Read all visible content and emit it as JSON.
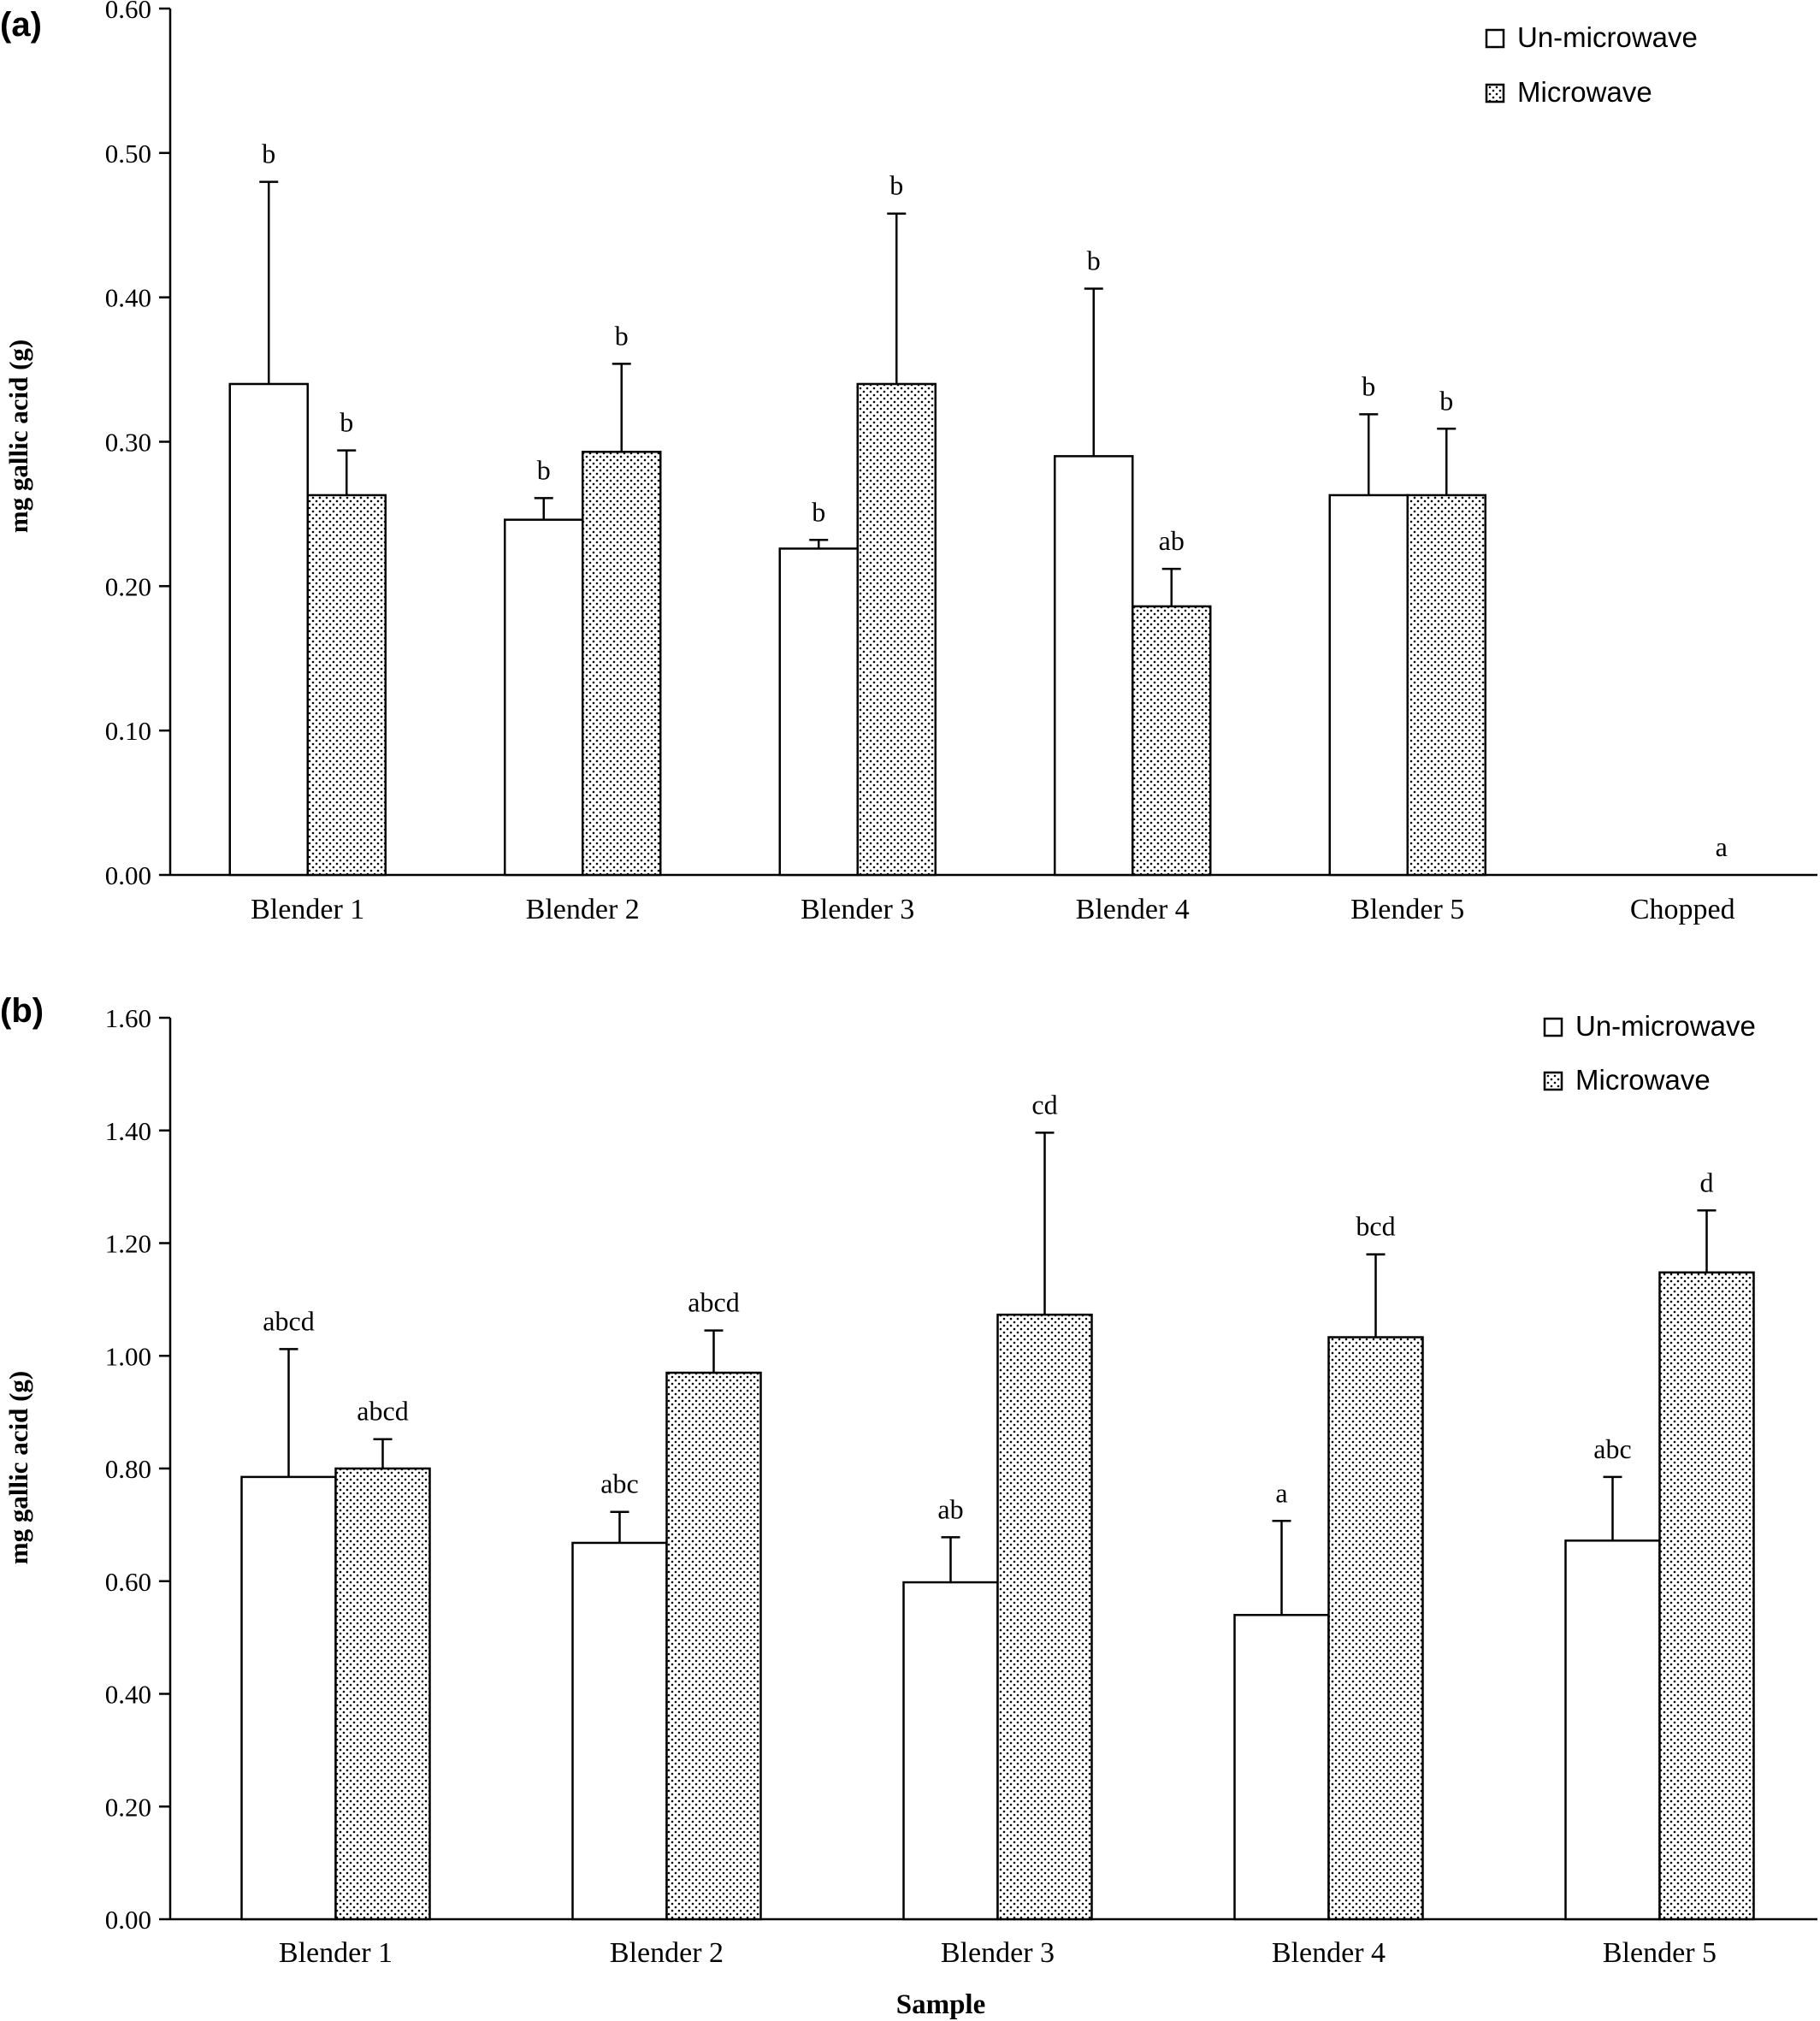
{
  "chart_data": [
    {
      "panel_label": "(a)",
      "type": "bar",
      "ylabel": "mg gallic acid (g)",
      "xlabel": "",
      "ylim": [
        0,
        0.6
      ],
      "yticks": [
        "0.00",
        "0.10",
        "0.20",
        "0.30",
        "0.40",
        "0.50",
        "0.60"
      ],
      "grid": false,
      "legend_position": "top-right",
      "categories": [
        "Blender 1",
        "Blender 2",
        "Blender 3",
        "Blender 4",
        "Blender 5",
        "Chopped"
      ],
      "series": [
        {
          "name": "Un-microwave",
          "pattern": "white",
          "values": [
            0.34,
            0.246,
            0.226,
            0.29,
            0.263,
            0
          ],
          "error": [
            0.14,
            0.015,
            0.006,
            0.116,
            0.056,
            0
          ],
          "labels": [
            "b",
            "b",
            "b",
            "b",
            "b",
            ""
          ]
        },
        {
          "name": "Microwave",
          "pattern": "dotted",
          "values": [
            0.263,
            0.293,
            0.34,
            0.186,
            0.263,
            0
          ],
          "error": [
            0.031,
            0.061,
            0.118,
            0.026,
            0.046,
            0
          ],
          "labels": [
            "b",
            "b",
            "b",
            "ab",
            "b",
            "a"
          ]
        }
      ]
    },
    {
      "panel_label": "(b)",
      "type": "bar",
      "ylabel": "mg gallic acid (g)",
      "xlabel": "Sample",
      "ylim": [
        0,
        1.6
      ],
      "yticks": [
        "0.00",
        "0.20",
        "0.40",
        "0.60",
        "0.80",
        "1.00",
        "1.20",
        "1.40",
        "1.60"
      ],
      "grid": false,
      "legend_position": "top-right",
      "categories": [
        "Blender 1",
        "Blender 2",
        "Blender 3",
        "Blender 4",
        "Blender 5"
      ],
      "series": [
        {
          "name": "Un-microwave",
          "pattern": "white",
          "values": [
            0.785,
            0.668,
            0.598,
            0.54,
            0.672
          ],
          "error": [
            0.227,
            0.055,
            0.08,
            0.167,
            0.113
          ],
          "labels": [
            "abcd",
            "abc",
            "ab",
            "a",
            "abc"
          ]
        },
        {
          "name": "Microwave",
          "pattern": "dotted",
          "values": [
            0.8,
            0.97,
            1.073,
            1.033,
            1.148
          ],
          "error": [
            0.052,
            0.075,
            0.323,
            0.147,
            0.11
          ],
          "labels": [
            "abcd",
            "abcd",
            "cd",
            "bcd",
            "d"
          ]
        }
      ]
    }
  ],
  "colors": {
    "ink": "#000000",
    "background": "#ffffff"
  },
  "icons": {
    "legend_open": "open-square",
    "legend_dotted": "dotted-square"
  }
}
